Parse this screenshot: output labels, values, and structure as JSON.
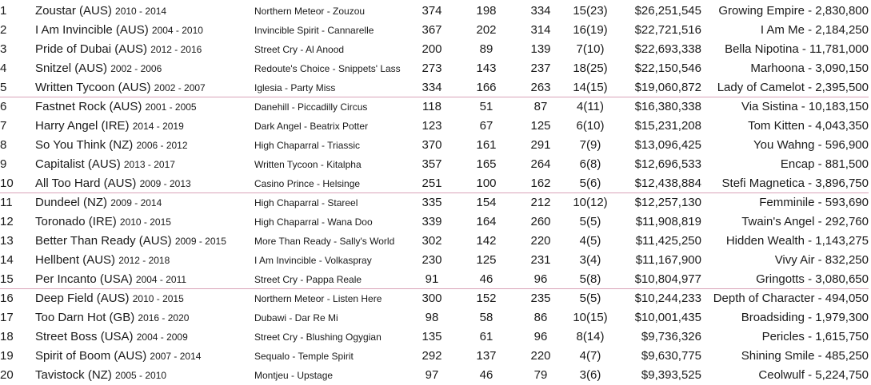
{
  "rows": [
    {
      "rank": "1",
      "name": "Zoustar (AUS)",
      "years": "2010 - 2014",
      "pedigree": "Northern Meteor - Zouzou",
      "c1": "374",
      "c2": "198",
      "c3": "334",
      "c4": "15(23)",
      "prize": "$26,251,545",
      "top": "Growing Empire - 2,830,800"
    },
    {
      "rank": "2",
      "name": "I Am Invincible (AUS)",
      "years": "2004 - 2010",
      "pedigree": "Invincible Spirit - Cannarelle",
      "c1": "367",
      "c2": "202",
      "c3": "314",
      "c4": "16(19)",
      "prize": "$22,721,516",
      "top": "I Am Me - 2,184,250"
    },
    {
      "rank": "3",
      "name": "Pride of Dubai (AUS)",
      "years": "2012 - 2016",
      "pedigree": "Street Cry - Al Anood",
      "c1": "200",
      "c2": "89",
      "c3": "139",
      "c4": "7(10)",
      "prize": "$22,693,338",
      "top": "Bella Nipotina - 11,781,000"
    },
    {
      "rank": "4",
      "name": "Snitzel (AUS)",
      "years": "2002 - 2006",
      "pedigree": "Redoute's Choice - Snippets' Lass",
      "c1": "273",
      "c2": "143",
      "c3": "237",
      "c4": "18(25)",
      "prize": "$22,150,546",
      "top": "Marhoona - 3,090,150"
    },
    {
      "rank": "5",
      "name": "Written Tycoon (AUS)",
      "years": "2002 - 2007",
      "pedigree": "Iglesia - Party Miss",
      "c1": "334",
      "c2": "166",
      "c3": "263",
      "c4": "14(15)",
      "prize": "$19,060,872",
      "top": "Lady of Camelot - 2,395,500"
    },
    {
      "rank": "6",
      "name": "Fastnet Rock (AUS)",
      "years": "2001 - 2005",
      "pedigree": "Danehill - Piccadilly Circus",
      "c1": "118",
      "c2": "51",
      "c3": "87",
      "c4": "4(11)",
      "prize": "$16,380,338",
      "top": "Via Sistina - 10,183,150"
    },
    {
      "rank": "7",
      "name": "Harry Angel (IRE)",
      "years": "2014 - 2019",
      "pedigree": "Dark Angel - Beatrix Potter",
      "c1": "123",
      "c2": "67",
      "c3": "125",
      "c4": "6(10)",
      "prize": "$15,231,208",
      "top": "Tom Kitten - 4,043,350"
    },
    {
      "rank": "8",
      "name": "So You Think (NZ)",
      "years": "2006 - 2012",
      "pedigree": "High Chaparral - Triassic",
      "c1": "370",
      "c2": "161",
      "c3": "291",
      "c4": "7(9)",
      "prize": "$13,096,425",
      "top": "You Wahng - 596,900"
    },
    {
      "rank": "9",
      "name": "Capitalist (AUS)",
      "years": "2013 - 2017",
      "pedigree": "Written Tycoon - Kitalpha",
      "c1": "357",
      "c2": "165",
      "c3": "264",
      "c4": "6(8)",
      "prize": "$12,696,533",
      "top": "Encap - 881,500"
    },
    {
      "rank": "10",
      "name": "All Too Hard (AUS)",
      "years": "2009 - 2013",
      "pedigree": "Casino Prince - Helsinge",
      "c1": "251",
      "c2": "100",
      "c3": "162",
      "c4": "5(6)",
      "prize": "$12,438,884",
      "top": "Stefi Magnetica - 3,896,750"
    },
    {
      "rank": "11",
      "name": "Dundeel (NZ)",
      "years": "2009 - 2014",
      "pedigree": "High Chaparral - Stareel",
      "c1": "335",
      "c2": "154",
      "c3": "212",
      "c4": "10(12)",
      "prize": "$12,257,130",
      "top": "Femminile - 593,690"
    },
    {
      "rank": "12",
      "name": "Toronado (IRE)",
      "years": "2010 - 2015",
      "pedigree": "High Chaparral - Wana Doo",
      "c1": "339",
      "c2": "164",
      "c3": "260",
      "c4": "5(5)",
      "prize": "$11,908,819",
      "top": "Twain's Angel - 292,760"
    },
    {
      "rank": "13",
      "name": "Better Than Ready (AUS)",
      "years": "2009 - 2015",
      "pedigree": "More Than Ready - Sally's World",
      "c1": "302",
      "c2": "142",
      "c3": "220",
      "c4": "4(5)",
      "prize": "$11,425,250",
      "top": "Hidden Wealth - 1,143,275"
    },
    {
      "rank": "14",
      "name": "Hellbent (AUS)",
      "years": "2012 - 2018",
      "pedigree": "I Am Invincible - Volkaspray",
      "c1": "230",
      "c2": "125",
      "c3": "231",
      "c4": "3(4)",
      "prize": "$11,167,900",
      "top": "Vivy Air - 832,250"
    },
    {
      "rank": "15",
      "name": "Per Incanto (USA)",
      "years": "2004 - 2011",
      "pedigree": "Street Cry - Pappa Reale",
      "c1": "91",
      "c2": "46",
      "c3": "96",
      "c4": "5(8)",
      "prize": "$10,804,977",
      "top": "Gringotts - 3,080,650"
    },
    {
      "rank": "16",
      "name": "Deep Field (AUS)",
      "years": "2010 - 2015",
      "pedigree": "Northern Meteor - Listen Here",
      "c1": "300",
      "c2": "152",
      "c3": "235",
      "c4": "5(5)",
      "prize": "$10,244,233",
      "top": "Depth of Character - 494,050"
    },
    {
      "rank": "17",
      "name": "Too Darn Hot (GB)",
      "years": "2016 - 2020",
      "pedigree": "Dubawi - Dar Re Mi",
      "c1": "98",
      "c2": "58",
      "c3": "86",
      "c4": "10(15)",
      "prize": "$10,001,435",
      "top": "Broadsiding - 1,979,300"
    },
    {
      "rank": "18",
      "name": "Street Boss (USA)",
      "years": "2004 - 2009",
      "pedigree": "Street Cry - Blushing Ogygian",
      "c1": "135",
      "c2": "61",
      "c3": "96",
      "c4": "8(14)",
      "prize": "$9,736,326",
      "top": "Pericles - 1,615,750"
    },
    {
      "rank": "19",
      "name": "Spirit of Boom (AUS)",
      "years": "2007 - 2014",
      "pedigree": "Sequalo - Temple Spirit",
      "c1": "292",
      "c2": "137",
      "c3": "220",
      "c4": "4(7)",
      "prize": "$9,630,775",
      "top": "Shining Smile - 485,250"
    },
    {
      "rank": "20",
      "name": "Tavistock (NZ)",
      "years": "2005 - 2010",
      "pedigree": "Montjeu - Upstage",
      "c1": "97",
      "c2": "46",
      "c3": "79",
      "c4": "3(6)",
      "prize": "$9,393,525",
      "top": "Ceolwulf - 5,224,750"
    }
  ],
  "colors": {
    "divider": "#d9a3b8",
    "text": "#1a1a1a"
  }
}
